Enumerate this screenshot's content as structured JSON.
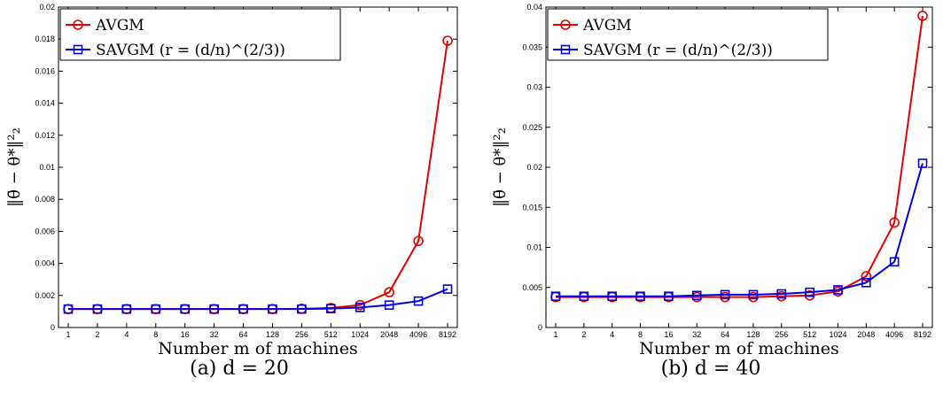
{
  "chart_data": [
    {
      "type": "line",
      "caption": "(a) d = 20",
      "xlabel": "Number m of machines",
      "ylabel": "‖θ̄ − θ*‖²₂",
      "categories": [
        "1",
        "2",
        "4",
        "8",
        "16",
        "32",
        "64",
        "128",
        "256",
        "512",
        "1024",
        "2048",
        "4096",
        "8192"
      ],
      "ylim": [
        0,
        0.02
      ],
      "yticks": [
        "0",
        "0.002",
        "0.004",
        "0.006",
        "0.008",
        "0.01",
        "0.012",
        "0.014",
        "0.016",
        "0.018",
        "0.02"
      ],
      "legend_position": "top-left",
      "series": [
        {
          "name": "AVGM",
          "color": "#e60000",
          "marker": "circle",
          "values": [
            0.00115,
            0.00115,
            0.00115,
            0.00115,
            0.00115,
            0.00115,
            0.00115,
            0.00115,
            0.00117,
            0.00122,
            0.0014,
            0.0022,
            0.0054,
            0.0179
          ]
        },
        {
          "name": "SAVGM (r = (d/n)^(2/3))",
          "color": "#0000e6",
          "marker": "square",
          "values": [
            0.00115,
            0.00115,
            0.00115,
            0.00115,
            0.00115,
            0.00115,
            0.00115,
            0.00115,
            0.00115,
            0.00118,
            0.00125,
            0.0014,
            0.00165,
            0.0024
          ]
        }
      ]
    },
    {
      "type": "line",
      "caption": "(b) d = 40",
      "xlabel": "Number m of machines",
      "ylabel": "‖θ̄ − θ*‖²₂",
      "categories": [
        "1",
        "2",
        "4",
        "8",
        "16",
        "32",
        "64",
        "128",
        "256",
        "512",
        "1024",
        "2048",
        "4096",
        "8192"
      ],
      "ylim": [
        0,
        0.04
      ],
      "yticks": [
        "0",
        "0.005",
        "0.01",
        "0.015",
        "0.02",
        "0.025",
        "0.03",
        "0.035",
        "0.04"
      ],
      "legend_position": "top-left",
      "series": [
        {
          "name": "AVGM",
          "color": "#e60000",
          "marker": "circle",
          "values": [
            0.0038,
            0.0038,
            0.0038,
            0.0038,
            0.0038,
            0.0038,
            0.0038,
            0.0038,
            0.0039,
            0.004,
            0.0045,
            0.0064,
            0.0131,
            0.0389
          ]
        },
        {
          "name": "SAVGM (r = (d/n)^(2/3))",
          "color": "#0000e6",
          "marker": "square",
          "values": [
            0.0039,
            0.0039,
            0.0039,
            0.0039,
            0.0039,
            0.004,
            0.0041,
            0.0041,
            0.0042,
            0.0044,
            0.0047,
            0.0056,
            0.0082,
            0.0205
          ]
        }
      ]
    }
  ]
}
